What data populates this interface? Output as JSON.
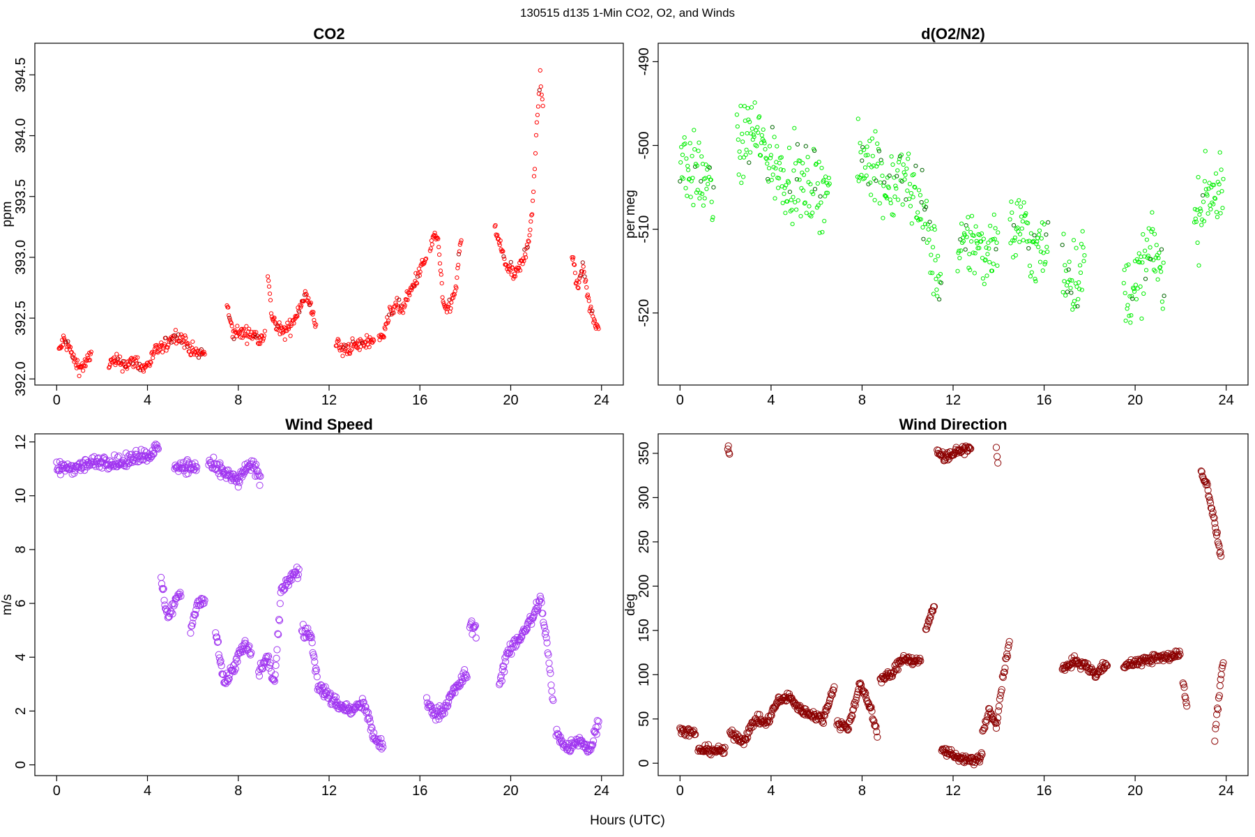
{
  "figure": {
    "suptitle": "130515   d135   1-Min CO2, O2, and Winds",
    "xlabel": "Hours (UTC)"
  },
  "chart_data": [
    {
      "type": "scatter",
      "title": "CO2",
      "ylabel": "ppm",
      "xlim": [
        -0.96,
        24.96
      ],
      "ylim": [
        391.95,
        394.76
      ],
      "xticks": [
        0,
        4,
        8,
        12,
        16,
        20,
        24
      ],
      "yticks": [
        392.0,
        392.5,
        393.0,
        393.5,
        394.0,
        394.5
      ],
      "ytick_labels": [
        "392.0",
        "392.5",
        "393.0",
        "393.5",
        "394.0",
        "394.5"
      ],
      "marker_color": "#ff0000",
      "marker_color_alt": "#990000",
      "marker_size": "small",
      "x_max": 24,
      "segments": [
        {
          "x": [
            0.1,
            0.3,
            0.55,
            0.8,
            1.05,
            1.3,
            1.55
          ],
          "y": [
            392.22,
            392.32,
            392.26,
            392.14,
            392.09,
            392.13,
            392.21
          ]
        },
        {
          "x": [
            2.3,
            2.7,
            3.1,
            3.5,
            3.8,
            4.1,
            4.4,
            4.75
          ],
          "y": [
            392.13,
            392.14,
            392.12,
            392.15,
            392.08,
            392.14,
            392.24,
            392.26
          ]
        },
        {
          "x": [
            4.75,
            5.0,
            5.3,
            5.6,
            5.9,
            6.2,
            6.55
          ],
          "y": [
            392.26,
            392.33,
            392.36,
            392.32,
            392.25,
            392.2,
            392.22
          ]
        },
        {
          "x": [
            7.5,
            7.75,
            8.1,
            8.5,
            8.9,
            9.2
          ],
          "y": [
            392.6,
            392.38,
            392.38,
            392.37,
            392.34,
            392.38
          ]
        },
        {
          "x": [
            9.3,
            9.45,
            9.7,
            10.0,
            10.3,
            10.6,
            10.95,
            11.25,
            11.45
          ],
          "y": [
            392.85,
            392.55,
            392.42,
            392.38,
            392.43,
            392.55,
            392.7,
            392.55,
            392.44
          ]
        },
        {
          "x": [
            12.3,
            12.6,
            13.0,
            13.4,
            13.8,
            14.0
          ],
          "y": [
            392.3,
            392.23,
            392.27,
            392.28,
            392.32,
            392.32
          ]
        },
        {
          "x": [
            14.2,
            14.5,
            14.9,
            15.2,
            15.6,
            15.9,
            16.3
          ],
          "y": [
            392.3,
            392.45,
            392.62,
            392.57,
            392.72,
            392.85,
            393.0
          ]
        },
        {
          "x": [
            16.45,
            16.6,
            16.8,
            17.05,
            17.3,
            17.55,
            17.85
          ],
          "y": [
            393.05,
            393.18,
            393.15,
            392.55,
            392.6,
            392.7,
            393.2
          ]
        },
        {
          "x": [
            19.3,
            19.6,
            19.9,
            20.2,
            20.5,
            20.8,
            21.0,
            21.15,
            21.3,
            21.45
          ],
          "y": [
            393.25,
            393.05,
            392.9,
            392.85,
            392.95,
            393.15,
            393.5,
            394.1,
            394.5,
            394.15
          ]
        },
        {
          "x": [
            22.7,
            22.95,
            23.2,
            23.45,
            23.7,
            23.9
          ],
          "y": [
            393.0,
            392.75,
            392.95,
            392.62,
            392.45,
            392.42
          ]
        }
      ],
      "noise": 0.06
    },
    {
      "type": "scatter",
      "title": "d(O2/N2)",
      "ylabel": "per meg",
      "xlim": [
        -0.96,
        24.96
      ],
      "ylim": [
        -528.6,
        -487.8
      ],
      "xticks": [
        0,
        4,
        8,
        12,
        16,
        20,
        24
      ],
      "yticks": [
        -520,
        -510,
        -500,
        -490
      ],
      "ytick_labels": [
        "-520",
        "-510",
        "-500",
        "-490"
      ],
      "marker_color": "#00ee00",
      "marker_color_alt": "#006600",
      "marker_size": "small",
      "x_max": 24,
      "segments": [
        {
          "x": [
            0.0,
            0.5,
            1.0,
            1.5
          ],
          "y": [
            -501,
            -503,
            -504,
            -506
          ]
        },
        {
          "x": [
            2.5,
            3.2,
            4.0,
            4.8,
            5.5,
            6.6
          ],
          "y": [
            -501,
            -498,
            -502,
            -504,
            -505,
            -505
          ]
        },
        {
          "x": [
            7.8,
            8.5,
            9.0,
            9.7,
            10.5,
            11.0,
            11.5
          ],
          "y": [
            -503,
            -501,
            -505,
            -504,
            -506,
            -512,
            -517
          ]
        },
        {
          "x": [
            12.2,
            12.8,
            13.4,
            14.0
          ],
          "y": [
            -514,
            -511,
            -513,
            -510
          ]
        },
        {
          "x": [
            14.5,
            15.0,
            15.6,
            16.2
          ],
          "y": [
            -511,
            -509,
            -513,
            -512
          ]
        },
        {
          "x": [
            16.8,
            17.3,
            17.8
          ],
          "y": [
            -514,
            -516,
            -514
          ]
        },
        {
          "x": [
            19.5,
            20.2,
            20.8,
            21.3
          ],
          "y": [
            -518,
            -516,
            -512,
            -516
          ]
        },
        {
          "x": [
            22.6,
            23.2,
            23.9
          ],
          "y": [
            -510,
            -505,
            -506
          ]
        }
      ],
      "noise": 4.5
    },
    {
      "type": "scatter",
      "title": "Wind Speed",
      "ylabel": "m/s",
      "xlim": [
        -0.96,
        24.96
      ],
      "ylim": [
        -0.4,
        12.3
      ],
      "xticks": [
        0,
        4,
        8,
        12,
        16,
        20,
        24
      ],
      "yticks": [
        0,
        2,
        4,
        6,
        8,
        10,
        12
      ],
      "ytick_labels": [
        "0",
        "2",
        "4",
        "6",
        "8",
        "10",
        "12"
      ],
      "marker_color": "#a035f0",
      "marker_color_alt": "#a035f0",
      "marker_size": "large",
      "x_max": 24,
      "segments": [
        {
          "x": [
            0.0,
            1.0,
            2.0,
            3.0,
            3.5,
            4.0,
            4.5
          ],
          "y": [
            11.0,
            11.1,
            11.3,
            11.2,
            11.5,
            11.5,
            11.8
          ]
        },
        {
          "x": [
            4.6,
            4.9,
            5.2,
            5.5
          ],
          "y": [
            6.8,
            5.5,
            6.0,
            6.5
          ]
        },
        {
          "x": [
            5.2,
            5.7,
            6.2
          ],
          "y": [
            11.1,
            11.1,
            11.0
          ]
        },
        {
          "x": [
            5.9,
            6.2,
            6.55
          ],
          "y": [
            5.0,
            6.0,
            6.1
          ]
        },
        {
          "x": [
            6.7,
            7.0,
            7.5,
            8.0,
            8.3,
            8.7,
            9.0
          ],
          "y": [
            11.2,
            11.0,
            10.8,
            10.5,
            11.0,
            11.1,
            10.6
          ]
        },
        {
          "x": [
            7.0,
            7.4,
            8.3,
            8.6
          ],
          "y": [
            5.0,
            3.0,
            4.5,
            4.0
          ]
        },
        {
          "x": [
            8.9,
            9.3,
            9.6,
            9.9,
            10.3,
            10.7
          ],
          "y": [
            3.5,
            4.0,
            3.0,
            6.5,
            7.0,
            7.2
          ]
        },
        {
          "x": [
            10.8,
            11.2,
            11.5,
            12.0,
            12.5,
            13.0,
            13.5,
            14.0,
            14.4
          ],
          "y": [
            5.0,
            4.8,
            3.0,
            2.5,
            2.2,
            2.0,
            2.3,
            1.0,
            0.6
          ]
        },
        {
          "x": [
            16.3,
            16.7,
            17.0,
            17.4,
            17.8,
            18.1
          ],
          "y": [
            2.3,
            1.9,
            2.0,
            2.6,
            3.1,
            3.4
          ]
        },
        {
          "x": [
            18.2,
            18.5
          ],
          "y": [
            5.2,
            5.0
          ]
        },
        {
          "x": [
            19.5,
            19.8,
            20.2,
            20.6,
            21.0,
            21.3,
            21.6,
            21.9
          ],
          "y": [
            3.0,
            4.0,
            4.5,
            5.0,
            5.5,
            6.2,
            4.5,
            2.0
          ]
        },
        {
          "x": [
            22.0,
            22.5,
            23.0,
            23.5,
            23.9
          ],
          "y": [
            1.2,
            0.6,
            1.0,
            0.5,
            1.8
          ]
        }
      ],
      "noise": 0.25
    },
    {
      "type": "scatter",
      "title": "Wind Direction",
      "ylabel": "deg",
      "xlim": [
        -0.96,
        24.96
      ],
      "ylim": [
        -14,
        372
      ],
      "xticks": [
        0,
        4,
        8,
        12,
        16,
        20,
        24
      ],
      "yticks": [
        0,
        50,
        100,
        150,
        200,
        250,
        300,
        350
      ],
      "ytick_labels": [
        "0",
        "50",
        "100",
        "150",
        "200",
        "250",
        "300",
        "350"
      ],
      "marker_color": "#8b0000",
      "marker_color_alt": "#8b0000",
      "marker_size": "large",
      "x_max": 24,
      "segments": [
        {
          "x": [
            0.0,
            0.4,
            0.7
          ],
          "y": [
            38,
            35,
            33
          ]
        },
        {
          "x": [
            0.8,
            1.3,
            2.0
          ],
          "y": [
            15,
            15,
            14
          ]
        },
        {
          "x": [
            2.1,
            2.2
          ],
          "y": [
            355,
            345
          ]
        },
        {
          "x": [
            2.2,
            2.8,
            3.3,
            3.8,
            4.3,
            4.8,
            5.3,
            5.8,
            6.3,
            6.8
          ],
          "y": [
            35,
            25,
            50,
            45,
            70,
            75,
            60,
            55,
            50,
            90
          ]
        },
        {
          "x": [
            6.9,
            7.4,
            7.9,
            8.4,
            8.7
          ],
          "y": [
            45,
            40,
            90,
            60,
            30
          ]
        },
        {
          "x": [
            8.8,
            9.3,
            9.8,
            10.3,
            10.6
          ],
          "y": [
            95,
            100,
            120,
            115,
            115
          ]
        },
        {
          "x": [
            10.8,
            11.2
          ],
          "y": [
            150,
            180
          ]
        },
        {
          "x": [
            11.3,
            11.6,
            12.0,
            12.5,
            12.8
          ],
          "y": [
            355,
            345,
            350,
            355,
            355
          ]
        },
        {
          "x": [
            11.5,
            12.0,
            12.5,
            13.0,
            13.3
          ],
          "y": [
            15,
            10,
            3,
            3,
            10
          ]
        },
        {
          "x": [
            13.3,
            13.6,
            13.9,
            14.2,
            14.5
          ],
          "y": [
            35,
            60,
            40,
            100,
            140
          ]
        },
        {
          "x": [
            13.9,
            14.0
          ],
          "y": [
            355,
            330
          ]
        },
        {
          "x": [
            16.8,
            17.3,
            17.8,
            18.3,
            18.8
          ],
          "y": [
            105,
            115,
            110,
            100,
            115
          ]
        },
        {
          "x": [
            19.5,
            20.2,
            20.8,
            21.5,
            22.0
          ],
          "y": [
            110,
            115,
            118,
            120,
            125
          ]
        },
        {
          "x": [
            22.1,
            22.3
          ],
          "y": [
            90,
            60
          ]
        },
        {
          "x": [
            22.9,
            23.2,
            23.5,
            23.8
          ],
          "y": [
            330,
            310,
            270,
            230
          ]
        },
        {
          "x": [
            23.5,
            23.7,
            23.9
          ],
          "y": [
            30,
            80,
            120
          ]
        }
      ],
      "noise": 5
    }
  ]
}
